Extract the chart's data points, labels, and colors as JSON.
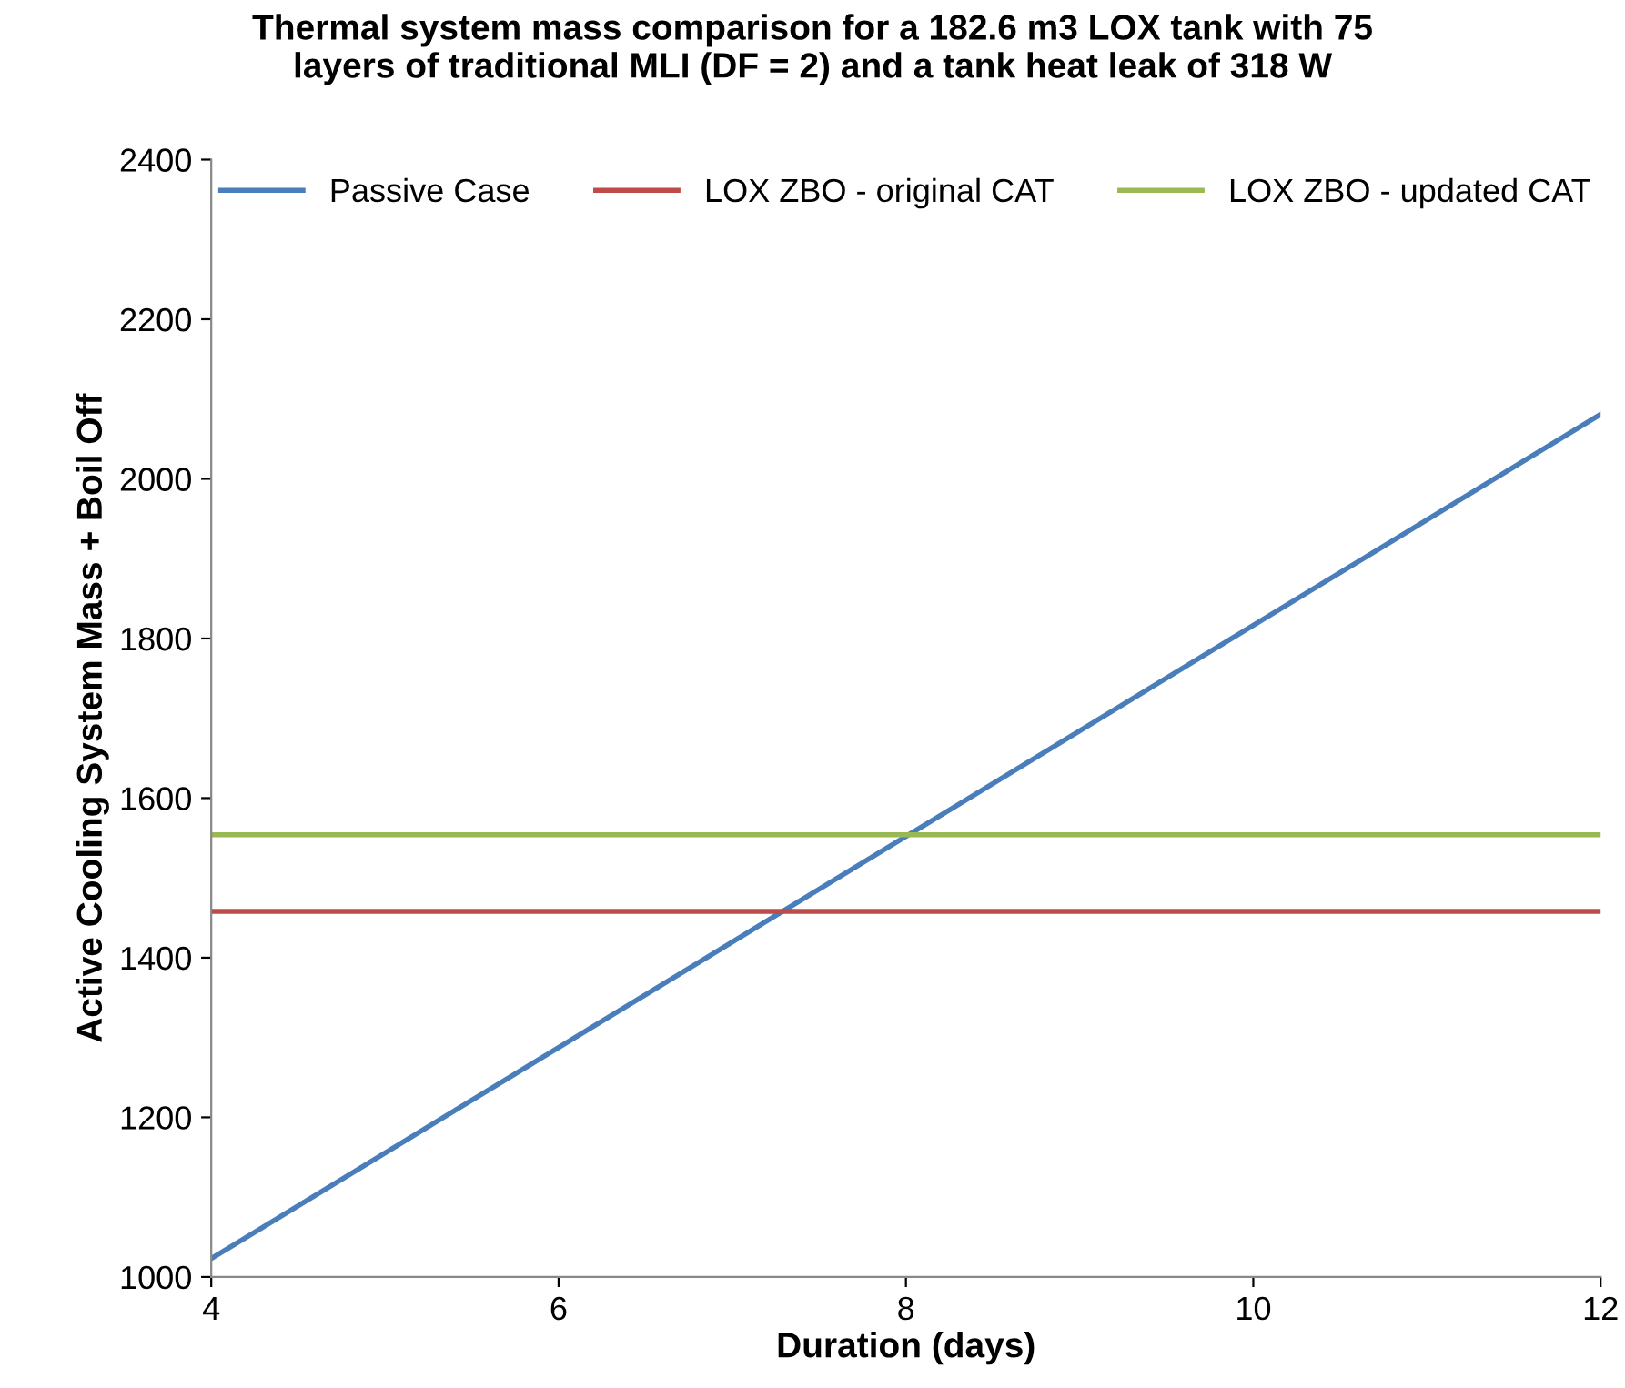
{
  "chart_data": {
    "type": "line",
    "title": "Thermal system mass comparison for a 182.6 m3 LOX tank with 75\nlayers of traditional MLI (DF = 2) and a tank heat leak of 318 W",
    "xlabel": "Duration (days)",
    "ylabel": "Active Cooling System Mass + Boil Off",
    "x": [
      4,
      12
    ],
    "series": [
      {
        "name": "Passive Case",
        "color": "#4a7ebb",
        "values": [
          1023,
          2081
        ]
      },
      {
        "name": "LOX ZBO - original CAT",
        "color": "#be4b48",
        "values": [
          1458,
          1458
        ]
      },
      {
        "name": "LOX ZBO - updated CAT",
        "color": "#98b954",
        "values": [
          1554,
          1554
        ]
      }
    ],
    "xlim": [
      4,
      12
    ],
    "xticks": [
      4,
      6,
      8,
      10,
      12
    ],
    "ylim": [
      1000,
      2400
    ],
    "yticks": [
      1000,
      1200,
      1400,
      1600,
      1800,
      2000,
      2200,
      2400
    ],
    "grid": false,
    "legend": "top",
    "marker": "none",
    "line_style": "solid"
  }
}
